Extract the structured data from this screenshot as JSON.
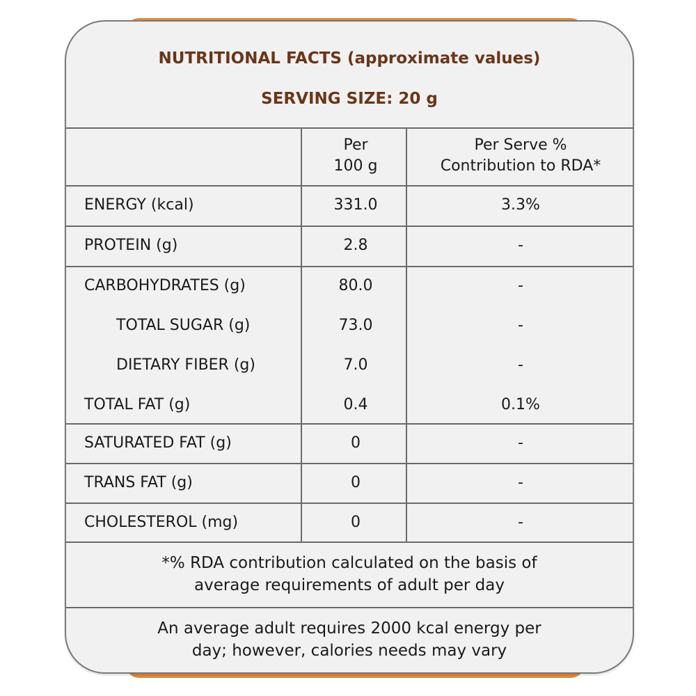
{
  "title": "NUTRITIONAL FACTS (approximate values)",
  "serving_size": "SERVING SIZE: 20 g",
  "colors": {
    "heading": "#6b3519",
    "border": "#6a6a6a",
    "panel": "#f1f1f1",
    "accent_backing": "#e08a3c"
  },
  "table": {
    "headers": [
      "",
      "Per\n100 g",
      "Per Serve %\nContribution to RDA*"
    ],
    "header_col1_lines": [
      "Per",
      "100 g"
    ],
    "header_col2_lines": [
      "Per Serve %",
      "Contribution to RDA*"
    ],
    "rows": [
      {
        "name": "ENERGY (kcal)",
        "per100": "331.0",
        "rda": "3.3%"
      },
      {
        "name": "PROTEIN (g)",
        "per100": "2.8",
        "rda": "-"
      },
      {
        "name": "CARBOHYDRATES (g)",
        "per100": "80.0",
        "rda": "-"
      },
      {
        "name": "TOTAL  SUGAR (g)",
        "per100": "73.0",
        "rda": "-"
      },
      {
        "name": "DIETARY FIBER (g)",
        "per100": "7.0",
        "rda": "-"
      },
      {
        "name": "TOTAL FAT (g)",
        "per100": "0.4",
        "rda": "0.1%"
      },
      {
        "name": "SATURATED FAT (g)",
        "per100": "0",
        "rda": "-"
      },
      {
        "name": "TRANS FAT (g)",
        "per100": "0",
        "rda": "-"
      },
      {
        "name": "CHOLESTEROL (mg)",
        "per100": "0",
        "rda": "-"
      }
    ]
  },
  "footnote_lines": [
    "*% RDA contribution calculated on the basis of",
    "average requirements of adult per day"
  ],
  "note_lines": [
    "An average adult requires 2000 kcal energy per",
    "day; however, calories needs may vary"
  ]
}
